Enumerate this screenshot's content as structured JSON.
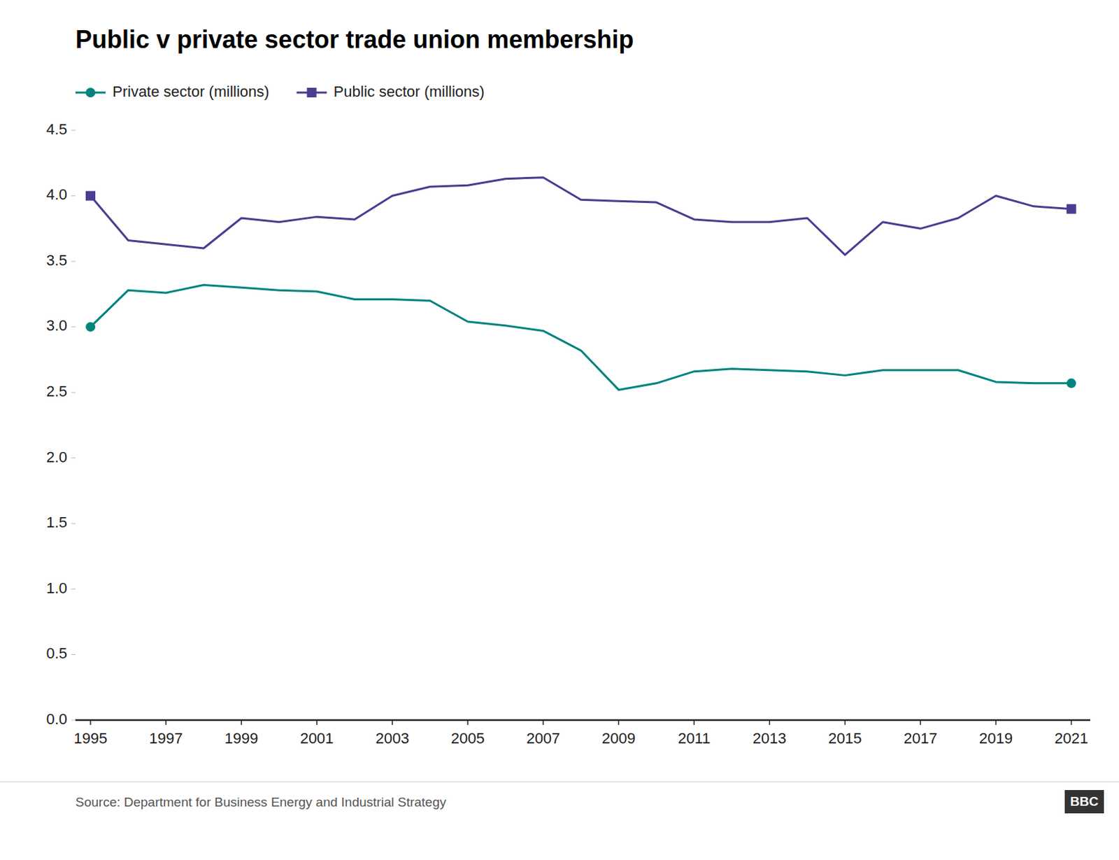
{
  "chart_data": {
    "type": "line",
    "title": "Public v private sector trade union membership",
    "source": "Source: Department for Business Energy and Industrial Strategy",
    "annotations": [
      "BBC"
    ],
    "x": [
      1995,
      1996,
      1997,
      1998,
      1999,
      2000,
      2001,
      2002,
      2003,
      2004,
      2005,
      2006,
      2007,
      2008,
      2009,
      2010,
      2011,
      2012,
      2013,
      2014,
      2015,
      2016,
      2017,
      2018,
      2019,
      2020,
      2021
    ],
    "series": [
      {
        "name": "Private sector (millions)",
        "color": "#00847e",
        "marker": "circle",
        "values": [
          3.0,
          3.28,
          3.26,
          3.32,
          3.3,
          3.28,
          3.27,
          3.21,
          3.21,
          3.2,
          3.04,
          3.01,
          2.97,
          2.82,
          2.52,
          2.57,
          2.66,
          2.68,
          2.67,
          2.66,
          2.63,
          2.67,
          2.67,
          2.67,
          2.58,
          2.57,
          2.57
        ]
      },
      {
        "name": "Public sector (millions)",
        "color": "#4b3d8f",
        "marker": "square",
        "values": [
          4.0,
          3.66,
          3.63,
          3.6,
          3.83,
          3.8,
          3.84,
          3.82,
          4.0,
          4.07,
          4.08,
          4.13,
          4.14,
          3.97,
          3.96,
          3.95,
          3.82,
          3.8,
          3.8,
          3.83,
          3.55,
          3.8,
          3.75,
          3.83,
          4.0,
          3.92,
          3.9
        ]
      }
    ],
    "xlim": [
      1994.6,
      2021.5
    ],
    "xticks": [
      1995,
      1997,
      1999,
      2001,
      2003,
      2005,
      2007,
      2009,
      2011,
      2013,
      2015,
      2017,
      2019,
      2021
    ],
    "ylim": [
      0.0,
      4.5
    ],
    "yticks": [
      {
        "value": 0.0,
        "label": "0.0"
      },
      0.5,
      {
        "value": 1.0,
        "label": "1.0"
      },
      1.5,
      {
        "value": 2.0,
        "label": "2.0"
      },
      2.5,
      {
        "value": 3.0,
        "label": "3.0"
      },
      3.5,
      {
        "value": 4.0,
        "label": "4.0"
      },
      4.5
    ],
    "grid": false,
    "legend": "top"
  }
}
